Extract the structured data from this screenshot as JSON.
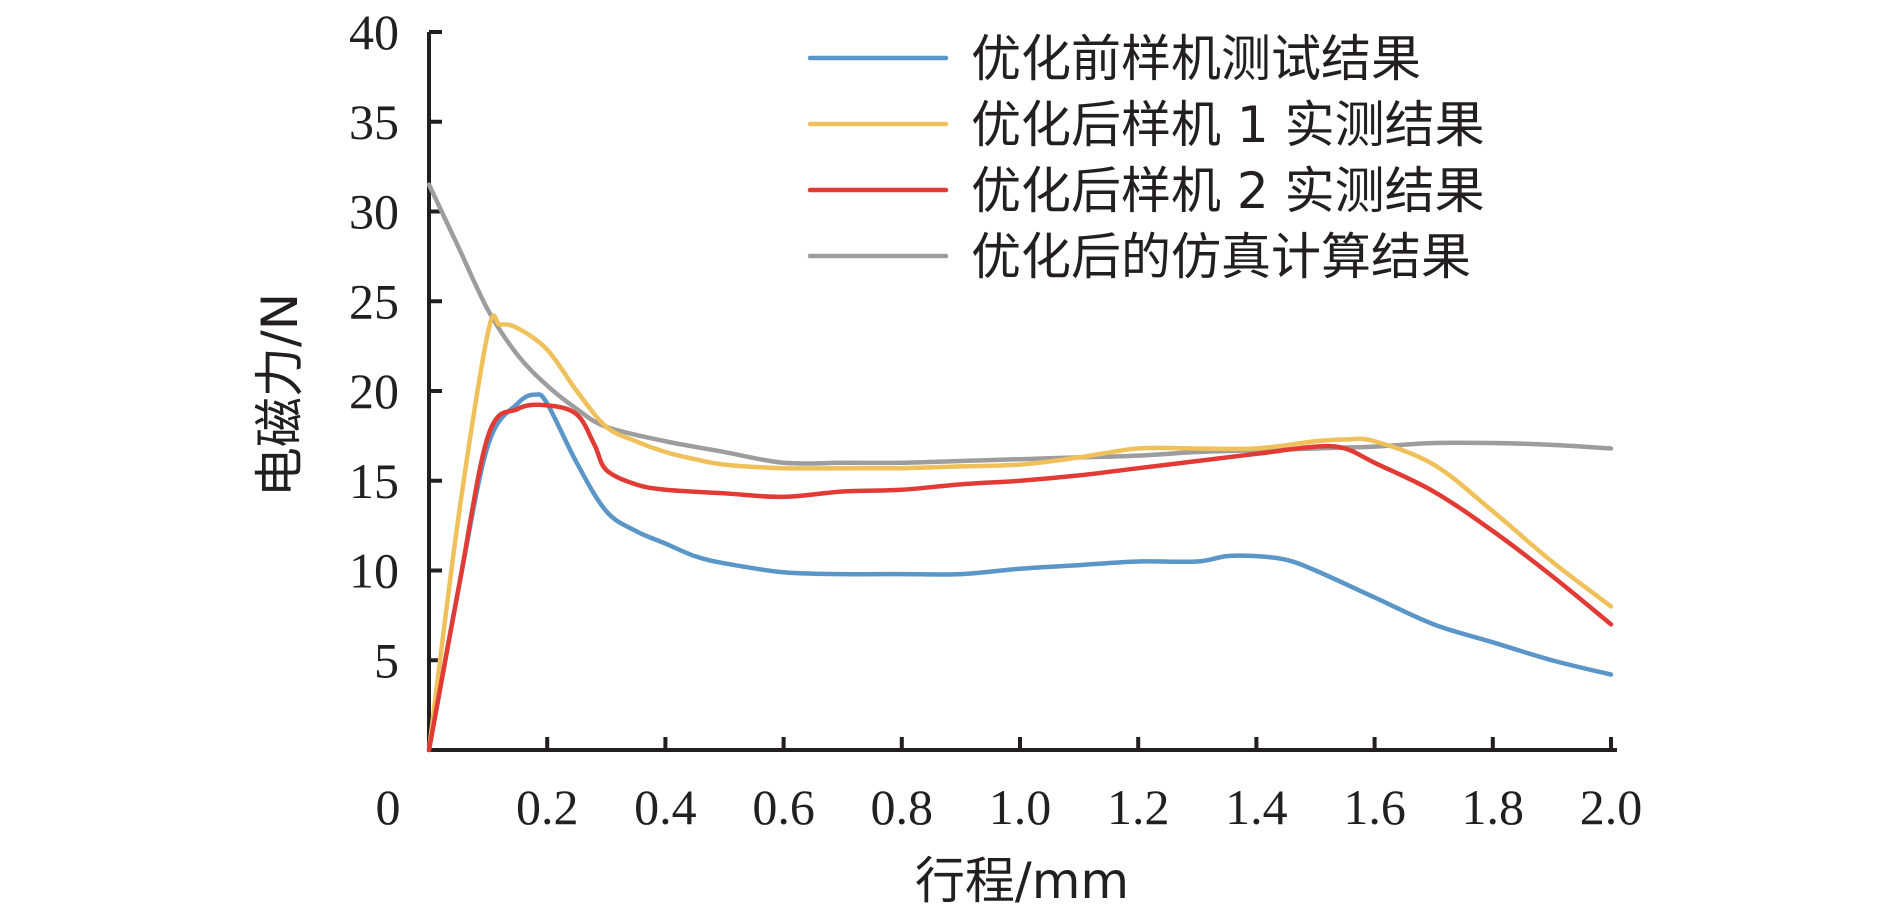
{
  "chart_data": {
    "type": "line",
    "xlabel": "行程/mm",
    "ylabel": "电磁力/N",
    "xlim": [
      0,
      2.0
    ],
    "ylim": [
      0,
      40
    ],
    "x_ticks": [
      0.2,
      0.4,
      0.6,
      0.8,
      1.0,
      1.2,
      1.4,
      1.6,
      1.8,
      2.0
    ],
    "x_tick_labels": [
      "0.2",
      "0.4",
      "0.6",
      "0.8",
      "1.0",
      "1.2",
      "1.4",
      "1.6",
      "1.8",
      "2.0"
    ],
    "origin_label": "0",
    "y_ticks": [
      5,
      10,
      15,
      20,
      25,
      30,
      35,
      40
    ],
    "y_tick_labels": [
      "5",
      "10",
      "15",
      "20",
      "25",
      "30",
      "35",
      "40"
    ],
    "grid": false,
    "legend_position": "top-right",
    "series": [
      {
        "name": "优化前样机测试结果",
        "color": "#5a96c8",
        "x": [
          0,
          0.05,
          0.1,
          0.15,
          0.18,
          0.2,
          0.25,
          0.3,
          0.35,
          0.4,
          0.45,
          0.5,
          0.6,
          0.7,
          0.8,
          0.9,
          1.0,
          1.1,
          1.2,
          1.3,
          1.35,
          1.4,
          1.45,
          1.5,
          1.6,
          1.7,
          1.8,
          1.9,
          2.0
        ],
        "y": [
          0,
          9,
          17,
          19.3,
          19.8,
          19.3,
          16,
          13.3,
          12.2,
          11.5,
          10.8,
          10.4,
          9.9,
          9.8,
          9.8,
          9.8,
          10.1,
          10.3,
          10.5,
          10.5,
          10.8,
          10.8,
          10.6,
          10.0,
          8.5,
          7.0,
          6.0,
          5.0,
          4.2
        ]
      },
      {
        "name": "优化后样机 1 实测结果",
        "color": "#f0c05a",
        "x": [
          0,
          0.05,
          0.1,
          0.12,
          0.15,
          0.2,
          0.25,
          0.3,
          0.35,
          0.4,
          0.45,
          0.5,
          0.6,
          0.7,
          0.8,
          0.9,
          1.0,
          1.1,
          1.2,
          1.3,
          1.4,
          1.5,
          1.55,
          1.6,
          1.7,
          1.8,
          1.9,
          2.0
        ],
        "y": [
          0,
          13,
          23.3,
          23.7,
          23.5,
          22.3,
          20,
          18,
          17.2,
          16.6,
          16.2,
          15.9,
          15.7,
          15.7,
          15.7,
          15.8,
          15.9,
          16.3,
          16.8,
          16.8,
          16.8,
          17.2,
          17.3,
          17.2,
          15.9,
          13.3,
          10.5,
          8.0
        ]
      },
      {
        "name": "优化后样机 2 实测结果",
        "color": "#e23b35",
        "x": [
          0,
          0.05,
          0.1,
          0.15,
          0.2,
          0.25,
          0.28,
          0.3,
          0.35,
          0.4,
          0.5,
          0.6,
          0.7,
          0.8,
          0.9,
          1.0,
          1.1,
          1.2,
          1.3,
          1.4,
          1.5,
          1.55,
          1.6,
          1.7,
          1.8,
          1.9,
          2.0
        ],
        "y": [
          0,
          9,
          17.5,
          19.0,
          19.2,
          18.7,
          17,
          15.6,
          14.8,
          14.5,
          14.3,
          14.1,
          14.4,
          14.5,
          14.8,
          15.0,
          15.3,
          15.7,
          16.1,
          16.5,
          16.9,
          16.8,
          16.0,
          14.4,
          12.2,
          9.7,
          7.0
        ]
      },
      {
        "name": "优化后的仿真计算结果",
        "color": "#9d9d9d",
        "x": [
          0,
          0.05,
          0.1,
          0.15,
          0.2,
          0.25,
          0.3,
          0.4,
          0.5,
          0.6,
          0.7,
          0.8,
          0.9,
          1.0,
          1.1,
          1.2,
          1.3,
          1.4,
          1.5,
          1.6,
          1.7,
          1.8,
          1.9,
          2.0
        ],
        "y": [
          31.5,
          28,
          24.5,
          22,
          20.3,
          19,
          18,
          17.2,
          16.6,
          16.0,
          16.0,
          16.0,
          16.1,
          16.2,
          16.3,
          16.4,
          16.6,
          16.7,
          16.8,
          16.9,
          17.1,
          17.1,
          17.0,
          16.8
        ]
      }
    ]
  }
}
